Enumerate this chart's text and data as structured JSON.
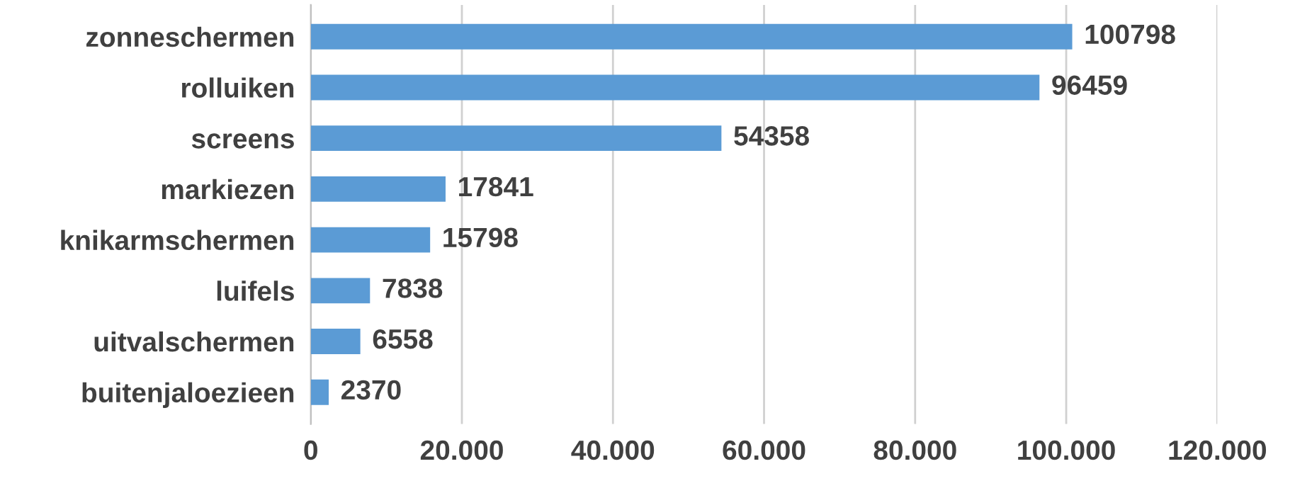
{
  "chart_data": {
    "type": "bar",
    "orientation": "horizontal",
    "categories": [
      "zonneschermen",
      "rolluiken",
      "screens",
      "markiezen",
      "knikarmschermen",
      "luifels",
      "uitvalschermen",
      "buitenjaloezieen"
    ],
    "values": [
      100798,
      96459,
      54358,
      17841,
      15798,
      7838,
      6558,
      2370
    ],
    "color": "#5b9bd5",
    "xlim": [
      0,
      120000
    ],
    "xticks": [
      0,
      {
        "value": 20000,
        "label": "20.000"
      },
      {
        "value": 40000,
        "label": "40.000"
      },
      {
        "value": 60000,
        "label": "60.000"
      },
      {
        "value": 80000,
        "label": "80.000"
      },
      {
        "value": 100000,
        "label": "100.000"
      },
      {
        "value": 120000,
        "label": "120.000"
      }
    ],
    "grid": "x",
    "data_labels": true
  }
}
